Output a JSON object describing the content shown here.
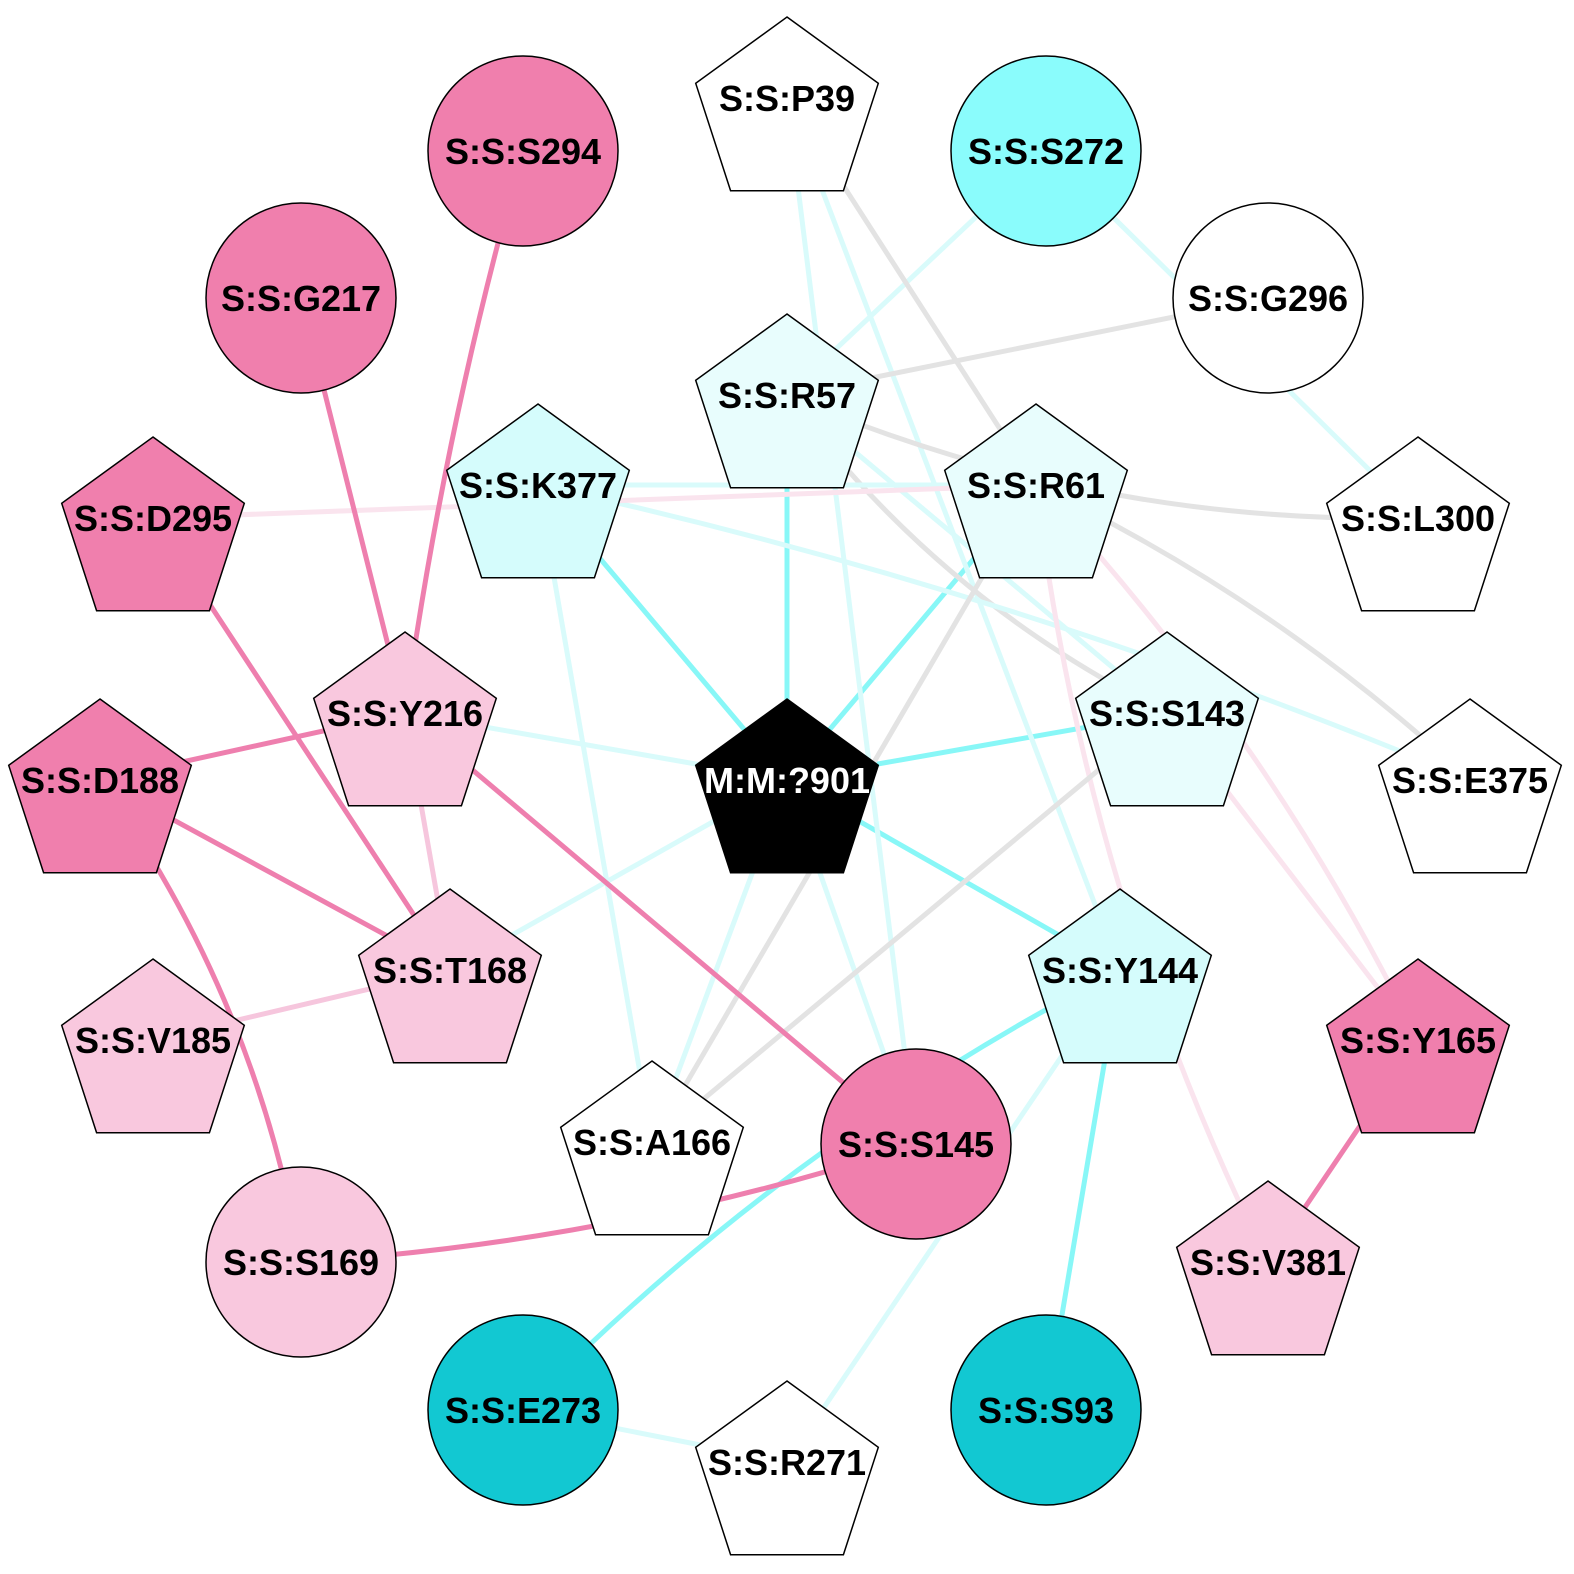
{
  "colors": {
    "white": "#ffffff",
    "black": "#000000",
    "pink_dark": "#f07fad",
    "pink_light": "#f9c8de",
    "cyan_dark": "#12c8d2",
    "cyan_mid": "#8afcfc",
    "cyan_light": "#d5fcfc",
    "cyan_pale": "#e8fdfd",
    "edge_cyan": "#88f7f7",
    "edge_cyan_faint": "#d9fbfb",
    "edge_pink": "#ee7fae",
    "edge_pink_light": "#f6c6dd",
    "edge_pink_faint": "#fae4ee",
    "edge_gray": "#e3e3e3"
  },
  "nodes": [
    {
      "id": "M:M:?901",
      "shape": "pentagon",
      "fill": "black",
      "text": "white"
    },
    {
      "id": "S:S:P39",
      "shape": "pentagon",
      "fill": "white"
    },
    {
      "id": "S:S:S294",
      "shape": "circle",
      "fill": "pink_dark"
    },
    {
      "id": "S:S:S272",
      "shape": "circle",
      "fill": "cyan_mid"
    },
    {
      "id": "S:S:G217",
      "shape": "circle",
      "fill": "pink_dark"
    },
    {
      "id": "S:S:G296",
      "shape": "circle",
      "fill": "white"
    },
    {
      "id": "S:S:R57",
      "shape": "pentagon",
      "fill": "cyan_pale"
    },
    {
      "id": "S:S:K377",
      "shape": "pentagon",
      "fill": "cyan_light"
    },
    {
      "id": "S:S:R61",
      "shape": "pentagon",
      "fill": "cyan_pale"
    },
    {
      "id": "S:S:D295",
      "shape": "pentagon",
      "fill": "pink_dark"
    },
    {
      "id": "S:S:L300",
      "shape": "pentagon",
      "fill": "white"
    },
    {
      "id": "S:S:Y216",
      "shape": "pentagon",
      "fill": "pink_light"
    },
    {
      "id": "S:S:S143",
      "shape": "pentagon",
      "fill": "cyan_pale"
    },
    {
      "id": "S:S:D188",
      "shape": "pentagon",
      "fill": "pink_dark"
    },
    {
      "id": "S:S:E375",
      "shape": "pentagon",
      "fill": "white"
    },
    {
      "id": "S:S:T168",
      "shape": "pentagon",
      "fill": "pink_light"
    },
    {
      "id": "S:S:Y144",
      "shape": "pentagon",
      "fill": "cyan_light"
    },
    {
      "id": "S:S:V185",
      "shape": "pentagon",
      "fill": "pink_light"
    },
    {
      "id": "S:S:Y165",
      "shape": "pentagon",
      "fill": "pink_dark"
    },
    {
      "id": "S:S:A166",
      "shape": "pentagon",
      "fill": "white"
    },
    {
      "id": "S:S:S145",
      "shape": "circle",
      "fill": "pink_dark"
    },
    {
      "id": "S:S:S169",
      "shape": "circle",
      "fill": "pink_light"
    },
    {
      "id": "S:S:V381",
      "shape": "pentagon",
      "fill": "pink_light"
    },
    {
      "id": "S:S:E273",
      "shape": "circle",
      "fill": "cyan_dark"
    },
    {
      "id": "S:S:S93",
      "shape": "circle",
      "fill": "cyan_dark"
    },
    {
      "id": "S:S:R271",
      "shape": "pentagon",
      "fill": "white"
    }
  ],
  "edges": [
    {
      "from": "M:M:?901",
      "to": "S:S:R57",
      "color": "edge_cyan"
    },
    {
      "from": "M:M:?901",
      "to": "S:S:K377",
      "color": "edge_cyan"
    },
    {
      "from": "M:M:?901",
      "to": "S:S:R61",
      "color": "edge_cyan"
    },
    {
      "from": "M:M:?901",
      "to": "S:S:S143",
      "color": "edge_cyan"
    },
    {
      "from": "M:M:?901",
      "to": "S:S:Y144",
      "color": "edge_cyan"
    },
    {
      "from": "M:M:?901",
      "to": "S:S:Y216",
      "color": "edge_cyan_faint"
    },
    {
      "from": "M:M:?901",
      "to": "S:S:T168",
      "color": "edge_cyan_faint"
    },
    {
      "from": "M:M:?901",
      "to": "S:S:A166",
      "color": "edge_cyan_faint"
    },
    {
      "from": "M:M:?901",
      "to": "S:S:S145",
      "color": "edge_cyan_faint"
    },
    {
      "from": "S:S:S272",
      "to": "S:S:R57",
      "color": "edge_cyan_faint"
    },
    {
      "from": "S:S:S272",
      "to": "S:S:L300",
      "color": "edge_cyan_faint"
    },
    {
      "from": "S:S:P39",
      "to": "S:S:S145",
      "color": "edge_cyan_faint"
    },
    {
      "from": "S:S:P39",
      "to": "S:S:Y144",
      "color": "edge_cyan_faint"
    },
    {
      "from": "S:S:P39",
      "to": "S:S:R61",
      "color": "edge_gray"
    },
    {
      "from": "S:S:R57",
      "to": "S:S:G296",
      "color": "edge_gray"
    },
    {
      "from": "S:S:R57",
      "to": "S:S:L300",
      "color": "edge_gray"
    },
    {
      "from": "S:S:R57",
      "to": "S:S:S143",
      "color": "edge_gray"
    },
    {
      "from": "S:S:R57",
      "to": "S:S:S143",
      "color": "edge_cyan_faint"
    },
    {
      "from": "S:S:K377",
      "to": "S:S:R61",
      "color": "edge_cyan_faint"
    },
    {
      "from": "S:S:K377",
      "to": "S:S:E375",
      "color": "edge_cyan_faint"
    },
    {
      "from": "S:S:K377",
      "to": "S:S:A166",
      "color": "edge_cyan_faint"
    },
    {
      "from": "S:S:D295",
      "to": "S:S:R61",
      "color": "edge_pink_faint"
    },
    {
      "from": "S:S:R61",
      "to": "S:S:E375",
      "color": "edge_gray"
    },
    {
      "from": "S:S:R61",
      "to": "S:S:A166",
      "color": "edge_gray"
    },
    {
      "from": "S:S:R61",
      "to": "S:S:Y165",
      "color": "edge_pink_faint"
    },
    {
      "from": "S:S:R61",
      "to": "S:S:V381",
      "color": "edge_pink_faint"
    },
    {
      "from": "S:S:S143",
      "to": "S:S:A166",
      "color": "edge_gray"
    },
    {
      "from": "S:S:S143",
      "to": "S:S:Y165",
      "color": "edge_pink_faint"
    },
    {
      "from": "S:S:Y144",
      "to": "S:S:E273",
      "color": "edge_cyan"
    },
    {
      "from": "S:S:Y144",
      "to": "S:S:S93",
      "color": "edge_cyan"
    },
    {
      "from": "S:S:Y144",
      "to": "S:S:R271",
      "color": "edge_cyan_faint"
    },
    {
      "from": "S:S:E273",
      "to": "S:S:R271",
      "color": "edge_cyan_faint"
    },
    {
      "from": "S:S:Y165",
      "to": "S:S:V381",
      "color": "edge_pink"
    },
    {
      "from": "S:S:S294",
      "to": "S:S:Y216",
      "color": "edge_pink"
    },
    {
      "from": "S:S:G217",
      "to": "S:S:Y216",
      "color": "edge_pink"
    },
    {
      "from": "S:S:D188",
      "to": "S:S:Y216",
      "color": "edge_pink"
    },
    {
      "from": "S:S:Y216",
      "to": "S:S:S145",
      "color": "edge_pink"
    },
    {
      "from": "S:S:Y216",
      "to": "S:S:T168",
      "color": "edge_pink_light"
    },
    {
      "from": "S:S:D295",
      "to": "S:S:T168",
      "color": "edge_pink"
    },
    {
      "from": "S:S:D188",
      "to": "S:S:T168",
      "color": "edge_pink"
    },
    {
      "from": "S:S:D188",
      "to": "S:S:S169",
      "color": "edge_pink"
    },
    {
      "from": "S:S:T168",
      "to": "S:S:V185",
      "color": "edge_pink_light"
    },
    {
      "from": "S:S:S169",
      "to": "S:S:S145",
      "color": "edge_pink"
    }
  ]
}
